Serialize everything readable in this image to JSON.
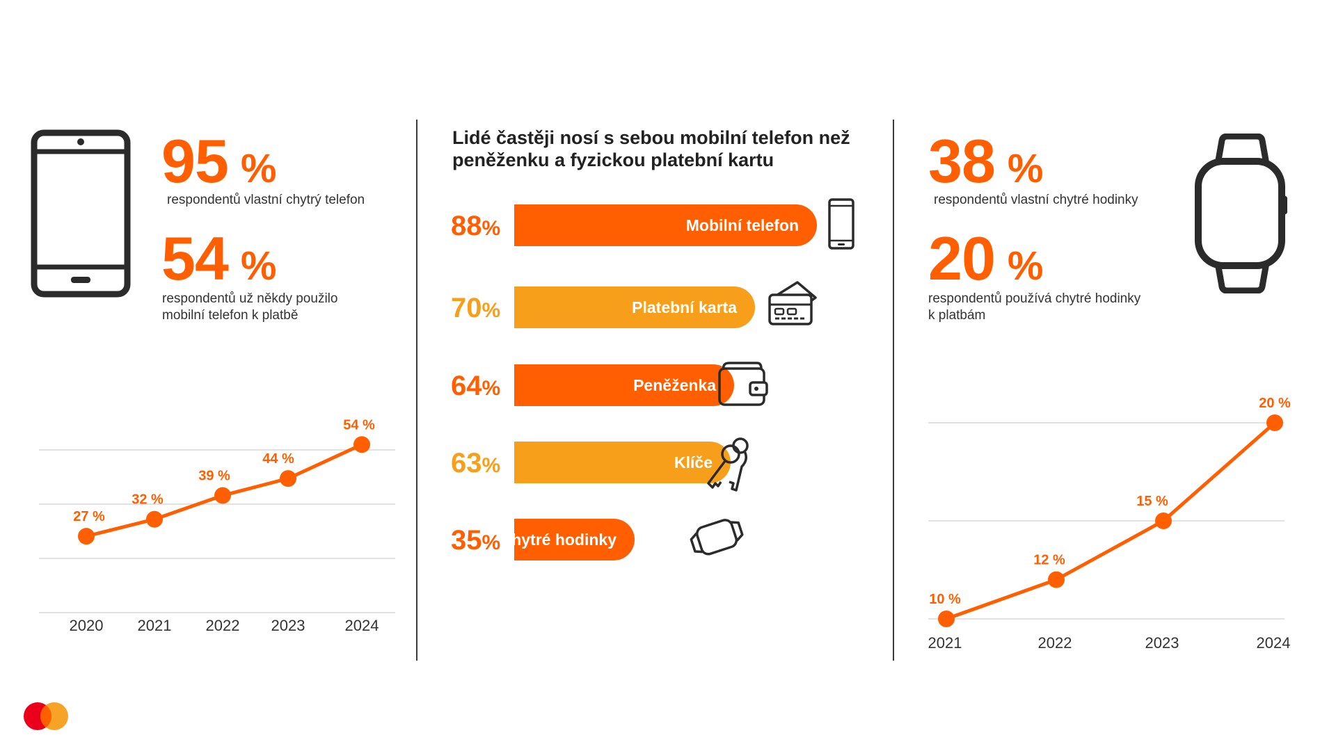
{
  "colors": {
    "orange": "#ff5f00",
    "amber": "#f79e1b",
    "dark": "#222222",
    "grid": "#d9d9d9",
    "mc_red": "#eb001b"
  },
  "left": {
    "stat1": {
      "value": "95",
      "unit": "%",
      "desc": "respondentů vlastní chytrý telefon"
    },
    "stat2": {
      "value": "54",
      "unit": "%",
      "desc_line1": "respondentů už někdy použilo",
      "desc_line2": "mobilní telefon k platbě"
    }
  },
  "middle": {
    "headline_line1": "Lidé častěji nosí s sebou mobilní telefon než",
    "headline_line2": "peněženku a fyzickou platební kartu",
    "bars": [
      {
        "value": 88,
        "pct_num": "88",
        "pct_sign": "%",
        "label": "Mobilní telefon",
        "color": "#ff5f00",
        "icon": "smartphone-icon"
      },
      {
        "value": 70,
        "pct_num": "70",
        "pct_sign": "%",
        "label": "Platební karta",
        "color": "#f79e1b",
        "icon": "payment-card-icon"
      },
      {
        "value": 64,
        "pct_num": "64",
        "pct_sign": "%",
        "label": "Peněženka",
        "color": "#ff5f00",
        "icon": "wallet-icon"
      },
      {
        "value": 63,
        "pct_num": "63",
        "pct_sign": "%",
        "label": "Klíče",
        "color": "#f79e1b",
        "icon": "keys-icon"
      },
      {
        "value": 35,
        "pct_num": "35",
        "pct_sign": "%",
        "label": "Chytré hodinky",
        "color": "#ff5f00",
        "icon": "smartwatch-icon"
      }
    ]
  },
  "right": {
    "stat1": {
      "value": "38",
      "unit": "%",
      "desc": "respondentů vlastní chytré hodinky"
    },
    "stat2": {
      "value": "20",
      "unit": "%",
      "desc_line1": "respondentů používá chytré hodinky",
      "desc_line2": "k platbám"
    }
  },
  "chart_data": [
    {
      "type": "line",
      "title": "",
      "x": [
        "2020",
        "2021",
        "2022",
        "2023",
        "2024"
      ],
      "values": [
        27,
        32,
        39,
        44,
        54
      ],
      "labels": [
        "27 %",
        "32 %",
        "39 %",
        "44 %",
        "54 %"
      ],
      "ylim": [
        0,
        60
      ],
      "grid": true
    },
    {
      "type": "line",
      "title": "",
      "x": [
        "2021",
        "2022",
        "2023",
        "2024"
      ],
      "values": [
        10,
        12,
        15,
        20
      ],
      "labels": [
        "10 %",
        "12 %",
        "15 %",
        "20 %"
      ],
      "ylim": [
        10,
        20
      ],
      "grid": true
    },
    {
      "type": "bar",
      "title": "Lidé častěji nosí s sebou mobilní telefon než peněženku a fyzickou platební kartu",
      "categories": [
        "Mobilní telefon",
        "Platební karta",
        "Peněženka",
        "Klíče",
        "Chytré hodinky"
      ],
      "values": [
        88,
        70,
        64,
        63,
        35
      ],
      "orientation": "horizontal",
      "ylim": [
        0,
        100
      ]
    }
  ]
}
